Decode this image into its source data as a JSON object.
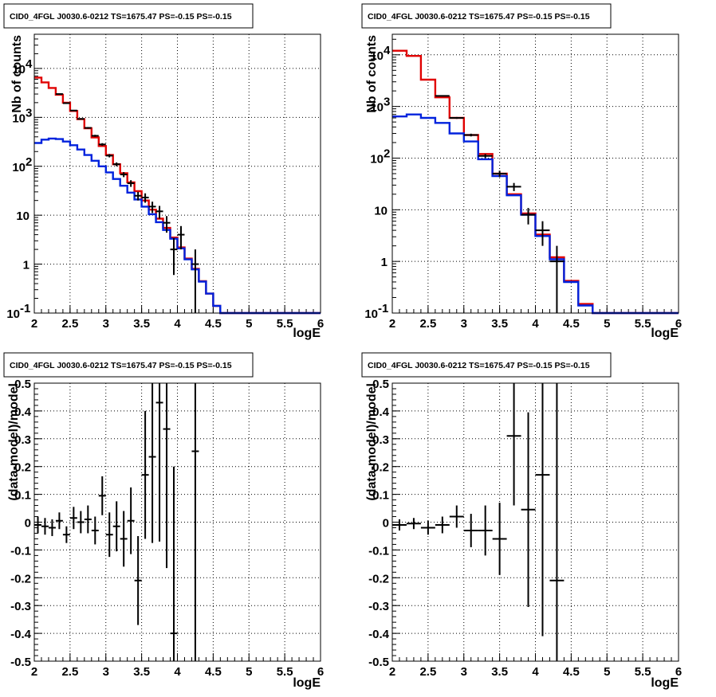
{
  "colors": {
    "data": "#000000",
    "model_total": "#e00000",
    "model_component": "#0022dd"
  },
  "chart_data": [
    {
      "type": "line",
      "title": "CID0_4FGL J0030.6-0212 TS=1675.47 PS=-0.15 PS=-0.15",
      "xlabel": "logE",
      "ylabel": "Nb of counts",
      "xlim": [
        2,
        6
      ],
      "ylim": [
        0.1,
        50000
      ],
      "yscale": "log",
      "grid": true,
      "xticks": [
        "2",
        "2.5",
        "3",
        "3.5",
        "4",
        "4.5",
        "5",
        "5.5",
        "6"
      ],
      "yticks": [
        "10^-1",
        "1",
        "10",
        "10^2",
        "10^3",
        "10^4"
      ],
      "bin_edges": [
        2.0,
        2.1,
        2.2,
        2.3,
        2.4,
        2.5,
        2.6,
        2.7,
        2.8,
        2.9,
        3.0,
        3.1,
        3.2,
        3.3,
        3.4,
        3.5,
        3.6,
        3.7,
        3.8,
        3.9,
        4.0,
        4.1,
        4.2,
        4.3,
        4.4,
        4.5,
        4.6,
        4.7,
        6.0
      ],
      "series": [
        {
          "role": "model_total",
          "values": [
            6500,
            5200,
            4000,
            2900,
            2000,
            1350,
            920,
            600,
            390,
            260,
            170,
            110,
            72,
            47,
            31,
            20,
            13,
            8.5,
            5.5,
            3.5,
            2.2,
            1.3,
            0.8,
            0.45,
            0.25,
            0.14,
            0.1,
            0.1
          ]
        },
        {
          "role": "model_component",
          "values": [
            300,
            350,
            370,
            360,
            320,
            270,
            220,
            170,
            130,
            100,
            75,
            55,
            40,
            29,
            21,
            15,
            10.5,
            7.2,
            5,
            3.3,
            2.1,
            1.25,
            0.78,
            0.44,
            0.25,
            0.14,
            0.1,
            0.1
          ]
        },
        {
          "role": "data",
          "x": [
            2.35,
            2.45,
            2.55,
            2.65,
            2.75,
            2.85,
            2.95,
            3.05,
            3.15,
            3.25,
            3.35,
            3.45,
            3.55,
            3.65,
            3.75,
            3.85,
            3.95,
            4.05,
            4.25
          ],
          "values": [
            3000,
            1950,
            1380,
            930,
            610,
            420,
            280,
            165,
            110,
            68,
            45,
            25,
            23,
            15,
            12,
            7,
            2,
            4,
            1
          ],
          "yerr_low": [
            2945,
            1906,
            1343,
            900,
            585,
            400,
            263,
            152,
            100,
            60,
            38,
            20,
            18,
            11.1,
            8.5,
            4.4,
            0.6,
            2,
            0.1
          ],
          "yerr_high": [
            3055,
            1994,
            1417,
            960,
            635,
            440,
            297,
            178,
            120,
            76,
            52,
            30,
            28,
            18.9,
            15.5,
            9.6,
            3.4,
            6,
            2
          ]
        }
      ]
    },
    {
      "type": "line",
      "title": "CID0_4FGL J0030.6-0212 TS=1675.47 PS=-0.15 PS=-0.15",
      "xlabel": "logE",
      "ylabel": "Nb of counts",
      "xlim": [
        2,
        6
      ],
      "ylim": [
        0.1,
        25000
      ],
      "yscale": "log",
      "grid": true,
      "xticks": [
        "2",
        "2.5",
        "3",
        "3.5",
        "4",
        "4.5",
        "5",
        "5.5",
        "6"
      ],
      "yticks": [
        "10^-1",
        "1",
        "10",
        "10^2",
        "10^3",
        "10^4"
      ],
      "bin_edges": [
        2.0,
        2.2,
        2.4,
        2.6,
        2.8,
        3.0,
        3.2,
        3.4,
        3.6,
        3.8,
        4.0,
        4.2,
        4.4,
        4.6,
        4.8,
        6.0
      ],
      "series": [
        {
          "role": "model_total",
          "values": [
            12000,
            9500,
            3300,
            1500,
            600,
            280,
            120,
            50,
            20,
            8.5,
            3.3,
            1.2,
            0.42,
            0.15,
            0.1
          ]
        },
        {
          "role": "model_component",
          "values": [
            640,
            700,
            600,
            480,
            300,
            210,
            95,
            45,
            19,
            8,
            3.1,
            1.1,
            0.4,
            0.14,
            0.1
          ]
        },
        {
          "role": "data",
          "x": [
            2.7,
            2.9,
            3.1,
            3.3,
            3.5,
            3.7,
            3.9,
            4.1,
            4.3
          ],
          "values": [
            1600,
            600,
            280,
            110,
            50,
            28,
            8,
            4,
            1
          ],
          "yerr_low": [
            1560,
            575,
            263,
            100,
            43,
            23,
            5.2,
            2,
            0.1
          ],
          "yerr_high": [
            1640,
            625,
            297,
            120,
            57,
            33,
            10.8,
            6,
            2
          ]
        }
      ]
    },
    {
      "type": "scatter",
      "title": "CID0_4FGL J0030.6-0212 TS=1675.47 PS=-0.15 PS=-0.15",
      "xlabel": "logE",
      "ylabel": "(data-model)/model",
      "xlim": [
        2,
        6
      ],
      "ylim": [
        -0.5,
        0.5
      ],
      "grid": true,
      "xticks": [
        "2",
        "2.5",
        "3",
        "3.5",
        "4",
        "4.5",
        "5",
        "5.5",
        "6"
      ],
      "yticks": [
        "-0.5",
        "-0.4",
        "-0.3",
        "-0.2",
        "-0.1",
        "0",
        "0.1",
        "0.2",
        "0.3",
        "0.4",
        "0.5"
      ],
      "series": [
        {
          "role": "data",
          "x": [
            2.05,
            2.15,
            2.25,
            2.35,
            2.45,
            2.55,
            2.65,
            2.75,
            2.85,
            2.95,
            3.05,
            3.15,
            3.25,
            3.35,
            3.45,
            3.55,
            3.65,
            3.75,
            3.85,
            3.95,
            4.25
          ],
          "values": [
            -0.01,
            -0.015,
            -0.02,
            0.005,
            -0.045,
            0.015,
            0.0,
            0.01,
            -0.03,
            0.095,
            -0.045,
            -0.015,
            -0.06,
            0.005,
            -0.21,
            0.17,
            0.235,
            0.43,
            0.335,
            -0.4,
            0.255
          ],
          "yerr": [
            0.03,
            0.03,
            0.03,
            0.03,
            0.03,
            0.04,
            0.04,
            0.05,
            0.05,
            0.07,
            0.08,
            0.09,
            0.1,
            0.12,
            0.16,
            0.23,
            0.31,
            0.5,
            0.5,
            0.6,
            1.5
          ]
        }
      ]
    },
    {
      "type": "scatter",
      "title": "CID0_4FGL J0030.6-0212 TS=1675.47 PS=-0.15 PS=-0.15",
      "xlabel": "logE",
      "ylabel": "(data-model)/model",
      "xlim": [
        2,
        6
      ],
      "ylim": [
        -0.5,
        0.5
      ],
      "grid": true,
      "xticks": [
        "2",
        "2.5",
        "3",
        "3.5",
        "4",
        "4.5",
        "5",
        "5.5",
        "6"
      ],
      "yticks": [
        "-0.5",
        "-0.4",
        "-0.3",
        "-0.2",
        "-0.1",
        "0",
        "0.1",
        "0.2",
        "0.3",
        "0.4",
        "0.5"
      ],
      "series": [
        {
          "role": "data",
          "x": [
            2.1,
            2.3,
            2.5,
            2.7,
            2.9,
            3.1,
            3.3,
            3.5,
            3.7,
            3.9,
            4.1,
            4.3
          ],
          "values": [
            -0.01,
            -0.005,
            -0.02,
            -0.01,
            0.02,
            -0.03,
            -0.03,
            -0.06,
            0.31,
            0.045,
            0.17,
            -0.21
          ],
          "yerr": [
            0.02,
            0.02,
            0.025,
            0.03,
            0.04,
            0.06,
            0.09,
            0.13,
            0.25,
            0.35,
            0.58,
            0.9
          ]
        }
      ]
    }
  ]
}
